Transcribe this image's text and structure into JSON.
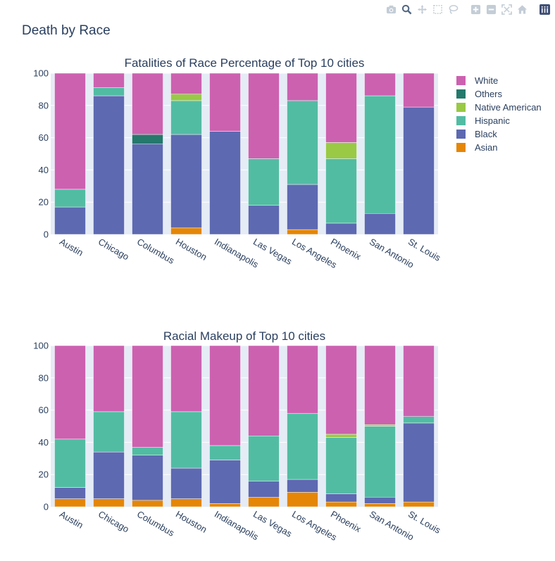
{
  "page": {
    "title": "Death by Race"
  },
  "modebar": {
    "icons": [
      "camera-icon",
      "zoom-icon",
      "pan-icon",
      "box-select-icon",
      "lasso-icon",
      "zoom-in-icon",
      "zoom-out-icon",
      "autoscale-icon",
      "reset-axes-icon",
      "plotly-logo-icon"
    ]
  },
  "colors": {
    "White": "#cc61b0",
    "Others": "#24796c",
    "Native American": "#99c945",
    "Hispanic": "#52bca3",
    "Black": "#5d69b1",
    "Asian": "#e58606",
    "plot_bg": "#e5ecf6"
  },
  "legend": {
    "items": [
      "White",
      "Others",
      "Native American",
      "Hispanic",
      "Black",
      "Asian"
    ]
  },
  "chart_data": [
    {
      "type": "bar",
      "barmode": "stack",
      "title": "Fatalities of Race Percentage of Top 10 cities",
      "categories": [
        "Austin",
        "Chicago",
        "Columbus",
        "Houston",
        "Indianapolis",
        "Las Vegas",
        "Los Angeles",
        "Phoenix",
        "San Antonio",
        "St. Louis"
      ],
      "ylim": [
        0,
        100
      ],
      "yticks": [
        0,
        20,
        40,
        60,
        80,
        100
      ],
      "series": [
        {
          "name": "Asian",
          "values": [
            0,
            0,
            0,
            4,
            0,
            0,
            3,
            0,
            0,
            0
          ]
        },
        {
          "name": "Black",
          "values": [
            17,
            86,
            56,
            58,
            64,
            18,
            28,
            7,
            13,
            79
          ]
        },
        {
          "name": "Hispanic",
          "values": [
            11,
            5,
            0,
            21,
            0,
            29,
            52,
            40,
            73,
            0
          ]
        },
        {
          "name": "Native American",
          "values": [
            0,
            0,
            0,
            4,
            0,
            0,
            0,
            10,
            0,
            0
          ]
        },
        {
          "name": "Others",
          "values": [
            0,
            0,
            6,
            0,
            0,
            0,
            0,
            0,
            0,
            0
          ]
        },
        {
          "name": "White",
          "values": [
            72,
            9,
            38,
            13,
            36,
            53,
            17,
            43,
            14,
            21
          ]
        }
      ]
    },
    {
      "type": "bar",
      "barmode": "stack",
      "title": "Racial Makeup of Top 10 cities",
      "categories": [
        "Austin",
        "Chicago",
        "Columbus",
        "Houston",
        "Indianapolis",
        "Las Vegas",
        "Los Angeles",
        "Phoenix",
        "San Antonio",
        "St. Louis"
      ],
      "ylim": [
        0,
        100
      ],
      "yticks": [
        0,
        20,
        40,
        60,
        80,
        100
      ],
      "series": [
        {
          "name": "Asian",
          "values": [
            5,
            5,
            4,
            5,
            2,
            6,
            9,
            3,
            2,
            3
          ]
        },
        {
          "name": "Black",
          "values": [
            7,
            29,
            28,
            19,
            27,
            10,
            8,
            5,
            4,
            49
          ]
        },
        {
          "name": "Hispanic",
          "values": [
            30,
            25,
            5,
            35,
            9,
            28,
            41,
            35,
            44,
            4
          ]
        },
        {
          "name": "Native American",
          "values": [
            0,
            0,
            0,
            0,
            0,
            0,
            0,
            2,
            1,
            0
          ]
        },
        {
          "name": "Others",
          "values": [
            0,
            0,
            0,
            0,
            0,
            0,
            0,
            0,
            0,
            0
          ]
        },
        {
          "name": "White",
          "values": [
            58,
            41,
            63,
            41,
            62,
            56,
            42,
            55,
            49,
            44
          ]
        }
      ]
    }
  ]
}
